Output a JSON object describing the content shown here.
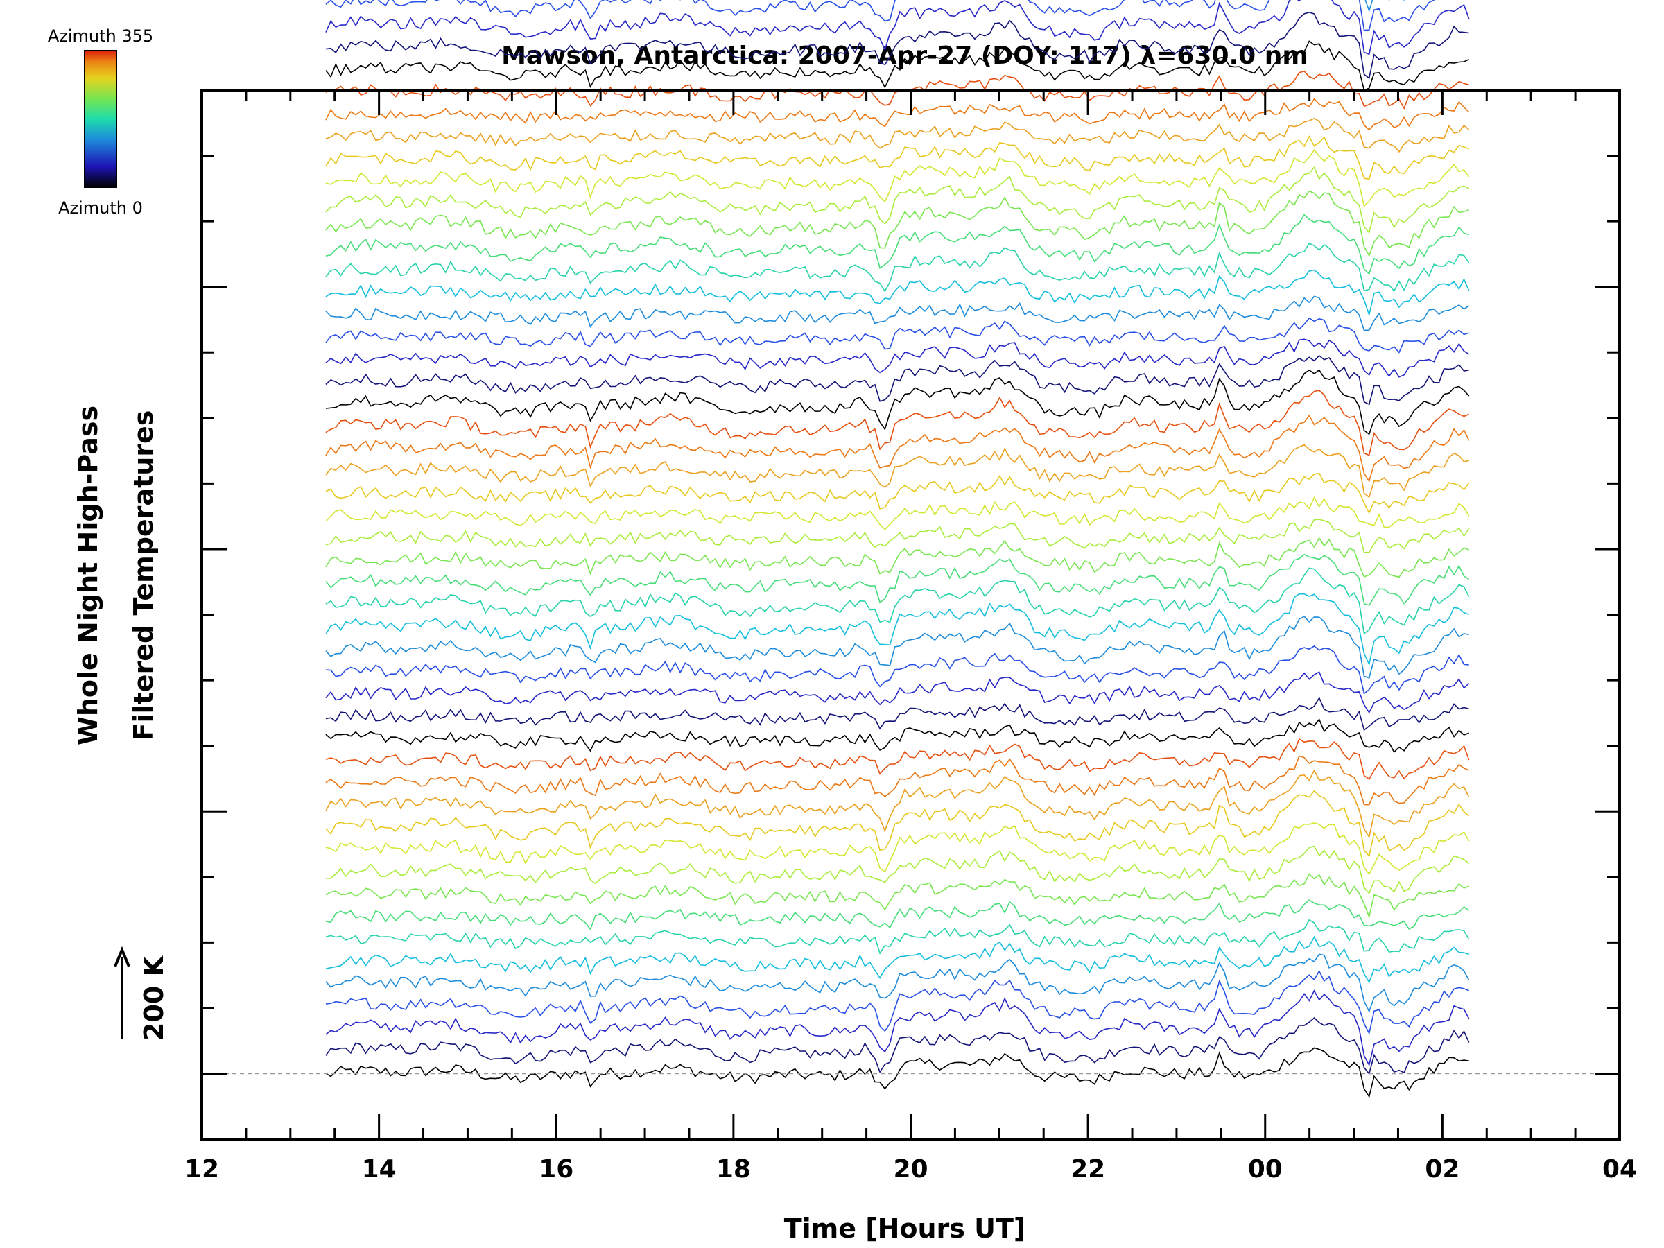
{
  "chart_data": {
    "type": "line",
    "title": "Mawson, Antarctica: 2007-Apr-27 (DOY: 117) λ=630.0 nm",
    "xlabel": "Time [Hours UT]",
    "ylabel_line1": "Whole Night High-Pass",
    "ylabel_line2": "Filtered Temperatures",
    "scale_bar_label": "200 K",
    "colorbar": {
      "top_label": "Azimuth 355",
      "bottom_label": "Azimuth 0"
    },
    "x_ticks": [
      "12",
      "14",
      "16",
      "18",
      "20",
      "22",
      "00",
      "02",
      "04"
    ],
    "xlim_hours": [
      12,
      28
    ],
    "data_x_range_hours": [
      13.4,
      26.3
    ],
    "n_traces": 75,
    "trace_offset_step": 0.34,
    "y_range": [
      -1,
      15
    ],
    "y_major_ticks": [
      0,
      4,
      8,
      12
    ],
    "baseline_dashed_at": 0,
    "palette": [
      "#000000",
      "#141478",
      "#2828c8",
      "#2850e6",
      "#1e8cdc",
      "#14bedc",
      "#28d2aa",
      "#46dc78",
      "#78e650",
      "#aaeb3c",
      "#d2e632",
      "#e6c81e",
      "#eba01e",
      "#eb7814",
      "#e6500f"
    ],
    "features": [
      {
        "hour": 16.4,
        "amplitude": -0.25,
        "width": 0.05
      },
      {
        "hour": 19.7,
        "amplitude": -0.45,
        "width": 0.12
      },
      {
        "hour": 20.5,
        "amplitude": 0.25,
        "width": 0.5
      },
      {
        "hour": 21.1,
        "amplitude": 0.35,
        "width": 0.25
      },
      {
        "hour": 22.1,
        "amplitude": -0.2,
        "width": 0.25
      },
      {
        "hour": 23.5,
        "amplitude": 0.35,
        "width": 0.06
      },
      {
        "hour": 24.3,
        "amplitude": 0.3,
        "width": 0.3
      },
      {
        "hour": 24.6,
        "amplitude": 0.35,
        "width": 0.3
      },
      {
        "hour": 25.15,
        "amplitude": -0.55,
        "width": 0.06
      },
      {
        "hour": 25.5,
        "amplitude": -0.35,
        "width": 0.25
      },
      {
        "hour": 26.2,
        "amplitude": 0.3,
        "width": 0.2
      }
    ],
    "legend": "none",
    "grid": false
  }
}
